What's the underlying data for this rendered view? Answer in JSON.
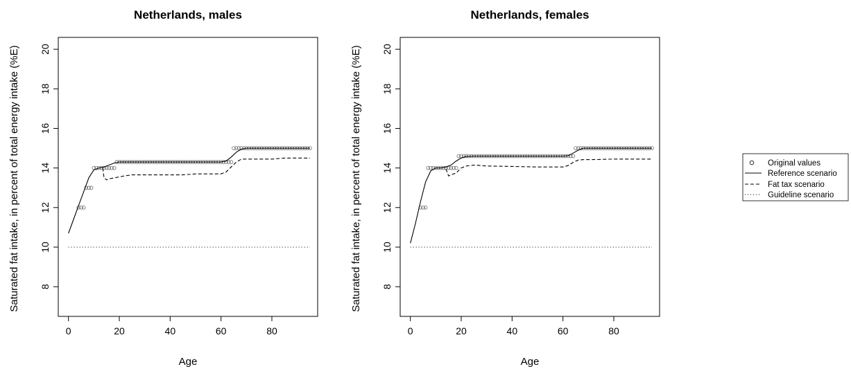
{
  "chart_data": [
    {
      "type": "line",
      "title": "Netherlands, males",
      "xlabel": "Age",
      "ylabel": "Saturated fat intake, in percent of total energy intake (%E)",
      "xlim": [
        -4,
        98
      ],
      "ylim": [
        6.5,
        20.6
      ],
      "xticks": [
        0,
        20,
        40,
        60,
        80
      ],
      "yticks": [
        8,
        10,
        12,
        14,
        16,
        18,
        20
      ],
      "grid": false,
      "series": [
        {
          "name": "Original values",
          "style": "points",
          "x": [
            4,
            5,
            6,
            7,
            8,
            9,
            10,
            11,
            12,
            13,
            14,
            15,
            16,
            17,
            18,
            19,
            20,
            21,
            22,
            23,
            24,
            25,
            26,
            27,
            28,
            29,
            30,
            31,
            32,
            33,
            34,
            35,
            36,
            37,
            38,
            39,
            40,
            41,
            42,
            43,
            44,
            45,
            46,
            47,
            48,
            49,
            50,
            51,
            52,
            53,
            54,
            55,
            56,
            57,
            58,
            59,
            60,
            61,
            62,
            63,
            64,
            65,
            66,
            67,
            68,
            69,
            70,
            71,
            72,
            73,
            74,
            75,
            76,
            77,
            78,
            79,
            80,
            81,
            82,
            83,
            84,
            85,
            86,
            87,
            88,
            89,
            90,
            91,
            92,
            93,
            94,
            95
          ],
          "y": [
            12,
            12,
            12,
            13,
            13,
            13,
            14,
            14,
            14,
            14,
            14,
            14,
            14,
            14,
            14,
            14.3,
            14.3,
            14.3,
            14.3,
            14.3,
            14.3,
            14.3,
            14.3,
            14.3,
            14.3,
            14.3,
            14.3,
            14.3,
            14.3,
            14.3,
            14.3,
            14.3,
            14.3,
            14.3,
            14.3,
            14.3,
            14.3,
            14.3,
            14.3,
            14.3,
            14.3,
            14.3,
            14.3,
            14.3,
            14.3,
            14.3,
            14.3,
            14.3,
            14.3,
            14.3,
            14.3,
            14.3,
            14.3,
            14.3,
            14.3,
            14.3,
            14.3,
            14.3,
            14.3,
            14.3,
            14.3,
            15,
            15,
            15,
            15,
            15,
            15,
            15,
            15,
            15,
            15,
            15,
            15,
            15,
            15,
            15,
            15,
            15,
            15,
            15,
            15,
            15,
            15,
            15,
            15,
            15,
            15,
            15,
            15,
            15,
            15,
            15
          ]
        },
        {
          "name": "Reference scenario",
          "style": "solid",
          "x": [
            0,
            2,
            4,
            6,
            8,
            10,
            12,
            14,
            16,
            18,
            20,
            25,
            30,
            40,
            50,
            60,
            62,
            64,
            66,
            68,
            70,
            75,
            80,
            85,
            90,
            95
          ],
          "y": [
            10.7,
            11.4,
            12.1,
            12.8,
            13.5,
            13.9,
            14.0,
            14.05,
            14.15,
            14.25,
            14.3,
            14.3,
            14.3,
            14.3,
            14.3,
            14.3,
            14.35,
            14.55,
            14.8,
            14.95,
            15.0,
            15.0,
            15.0,
            15.0,
            15.0,
            15.0
          ]
        },
        {
          "name": "Fat tax scenario",
          "style": "dashed",
          "x": [
            13.5,
            14,
            15,
            16,
            18,
            20,
            22,
            25,
            30,
            35,
            40,
            45,
            50,
            55,
            60,
            62,
            64,
            66,
            68,
            70,
            75,
            80,
            85,
            90,
            95
          ],
          "y": [
            14.0,
            13.5,
            13.4,
            13.45,
            13.5,
            13.55,
            13.6,
            13.65,
            13.65,
            13.65,
            13.65,
            13.65,
            13.7,
            13.7,
            13.7,
            13.8,
            14.05,
            14.3,
            14.45,
            14.45,
            14.45,
            14.45,
            14.5,
            14.5,
            14.5
          ]
        },
        {
          "name": "Guideline scenario",
          "style": "dotted",
          "x": [
            0,
            95
          ],
          "y": [
            10,
            10
          ]
        }
      ]
    },
    {
      "type": "line",
      "title": "Netherlands, females",
      "xlabel": "Age",
      "ylabel": "Saturated fat intake, in percent of total energy intake (%E)",
      "xlim": [
        -4,
        98
      ],
      "ylim": [
        6.5,
        20.6
      ],
      "xticks": [
        0,
        20,
        40,
        60,
        80
      ],
      "yticks": [
        8,
        10,
        12,
        14,
        16,
        18,
        20
      ],
      "grid": false,
      "series": [
        {
          "name": "Original values",
          "style": "points",
          "x": [
            4,
            5,
            6,
            7,
            8,
            9,
            10,
            11,
            12,
            13,
            14,
            15,
            16,
            17,
            18,
            19,
            20,
            21,
            22,
            23,
            24,
            25,
            26,
            27,
            28,
            29,
            30,
            31,
            32,
            33,
            34,
            35,
            36,
            37,
            38,
            39,
            40,
            41,
            42,
            43,
            44,
            45,
            46,
            47,
            48,
            49,
            50,
            51,
            52,
            53,
            54,
            55,
            56,
            57,
            58,
            59,
            60,
            61,
            62,
            63,
            64,
            65,
            66,
            67,
            68,
            69,
            70,
            71,
            72,
            73,
            74,
            75,
            76,
            77,
            78,
            79,
            80,
            81,
            82,
            83,
            84,
            85,
            86,
            87,
            88,
            89,
            90,
            91,
            92,
            93,
            94,
            95
          ],
          "y": [
            12,
            12,
            12,
            14,
            14,
            14,
            14,
            14,
            14,
            14,
            14,
            14,
            14,
            14,
            14,
            14.6,
            14.6,
            14.6,
            14.6,
            14.6,
            14.6,
            14.6,
            14.6,
            14.6,
            14.6,
            14.6,
            14.6,
            14.6,
            14.6,
            14.6,
            14.6,
            14.6,
            14.6,
            14.6,
            14.6,
            14.6,
            14.6,
            14.6,
            14.6,
            14.6,
            14.6,
            14.6,
            14.6,
            14.6,
            14.6,
            14.6,
            14.6,
            14.6,
            14.6,
            14.6,
            14.6,
            14.6,
            14.6,
            14.6,
            14.6,
            14.6,
            14.6,
            14.6,
            14.6,
            14.6,
            14.6,
            15,
            15,
            15,
            15,
            15,
            15,
            15,
            15,
            15,
            15,
            15,
            15,
            15,
            15,
            15,
            15,
            15,
            15,
            15,
            15,
            15,
            15,
            15,
            15,
            15,
            15,
            15,
            15,
            15,
            15,
            15
          ]
        },
        {
          "name": "Reference scenario",
          "style": "solid",
          "x": [
            0,
            2,
            4,
            6,
            8,
            10,
            12,
            14,
            16,
            18,
            20,
            22,
            25,
            30,
            40,
            50,
            60,
            62,
            64,
            66,
            68,
            70,
            75,
            80,
            85,
            90,
            95
          ],
          "y": [
            10.2,
            11.2,
            12.3,
            13.3,
            13.85,
            14.0,
            14.0,
            14.05,
            14.15,
            14.35,
            14.5,
            14.58,
            14.6,
            14.6,
            14.6,
            14.6,
            14.6,
            14.62,
            14.75,
            14.9,
            15.0,
            15.0,
            15.0,
            15.0,
            15.0,
            15.0,
            15.0
          ]
        },
        {
          "name": "Fat tax scenario",
          "style": "dashed",
          "x": [
            14,
            15,
            16,
            18,
            20,
            22,
            25,
            30,
            40,
            50,
            60,
            62,
            64,
            66,
            68,
            70,
            75,
            80,
            85,
            90,
            95
          ],
          "y": [
            13.95,
            13.6,
            13.65,
            13.75,
            14.0,
            14.1,
            14.15,
            14.1,
            14.08,
            14.05,
            14.05,
            14.12,
            14.28,
            14.4,
            14.42,
            14.42,
            14.43,
            14.45,
            14.45,
            14.45,
            14.45
          ]
        },
        {
          "name": "Guideline scenario",
          "style": "dotted",
          "x": [
            0,
            95
          ],
          "y": [
            10,
            10
          ]
        }
      ]
    }
  ],
  "legend": {
    "placement": "right",
    "entries": [
      {
        "symbol": "circle",
        "label": "Original values"
      },
      {
        "symbol": "solid",
        "label": "Reference scenario"
      },
      {
        "symbol": "dashed",
        "label": "Fat tax scenario"
      },
      {
        "symbol": "dotted",
        "label": "Guideline scenario"
      }
    ]
  }
}
